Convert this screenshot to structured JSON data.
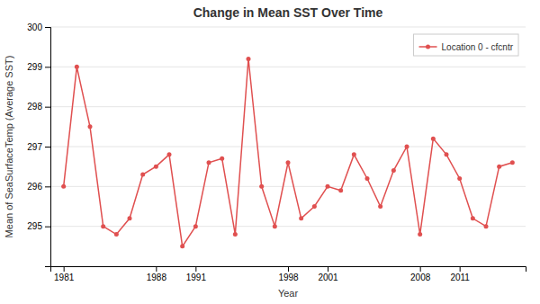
{
  "chart_data": {
    "type": "line",
    "title": "Change in Mean SST Over Time",
    "xlabel": "Year",
    "ylabel": "Mean of SeaSurfaceTemp (Average SST)",
    "x": [
      1981,
      1982,
      1983,
      1984,
      1985,
      1986,
      1987,
      1988,
      1989,
      1990,
      1991,
      1992,
      1993,
      1994,
      1995,
      1996,
      1997,
      1998,
      1999,
      2000,
      2001,
      2002,
      2003,
      2004,
      2005,
      2006,
      2007,
      2008,
      2009,
      2010,
      2011,
      2012,
      2013,
      2014,
      2015
    ],
    "series": [
      {
        "name": "Location 0 - cfcntr",
        "color": "#e05050",
        "marker": "circle",
        "values": [
          296.0,
          299.0,
          297.5,
          295.0,
          294.8,
          295.2,
          296.3,
          296.5,
          296.8,
          294.5,
          295.0,
          296.6,
          296.7,
          294.8,
          299.2,
          296.0,
          295.0,
          296.6,
          295.2,
          295.5,
          296.0,
          295.9,
          296.8,
          296.2,
          295.5,
          296.4,
          297.0,
          294.8,
          297.2,
          296.8,
          296.2,
          295.2,
          295.0,
          296.5,
          296.6
        ]
      }
    ],
    "xlim": [
      1980,
      2016
    ],
    "xticks": [
      1981,
      1988,
      1991,
      1998,
      2001,
      2008,
      2011
    ],
    "ylim": [
      294.0,
      300.0
    ],
    "yticks": [
      295,
      296,
      297,
      298,
      299,
      300
    ],
    "grid": true,
    "legend": "upper right"
  }
}
